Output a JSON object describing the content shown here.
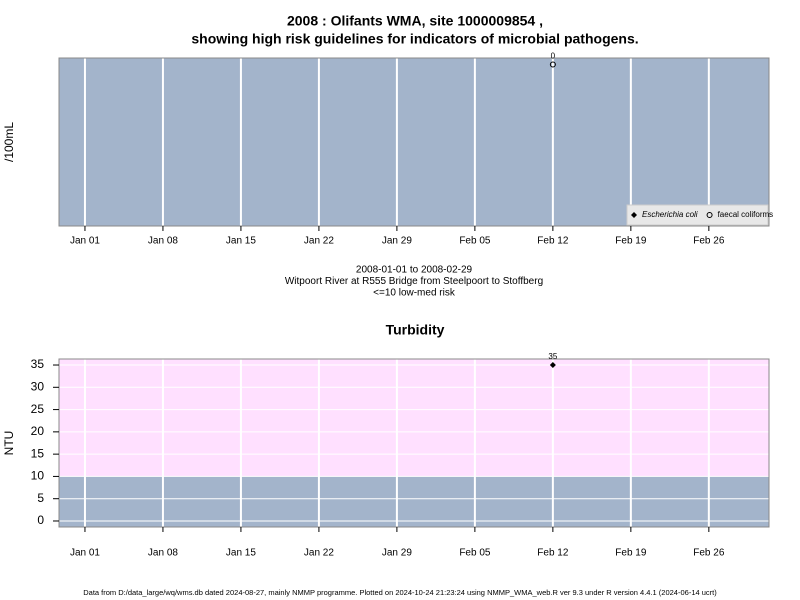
{
  "chart_data": [
    {
      "type": "scatter",
      "title": [
        "2008 : Olifants WMA, site 1000009854 ,",
        "showing high risk guidelines for indicators of microbial pathogens."
      ],
      "ylabel": "/100mL",
      "x": [
        43
      ],
      "series": [
        {
          "name": "Escherichia coli",
          "marker": "diamond",
          "color": "#000000",
          "values": [
            null
          ]
        },
        {
          "name": "faecal coliforms",
          "marker": "circle",
          "color": "#000000",
          "values": [
            0
          ]
        }
      ],
      "xlim": [
        -1.33,
        62.4
      ],
      "xticks": [
        {
          "value": 1,
          "label": "Jan 01"
        },
        {
          "value": 8,
          "label": "Jan 08"
        },
        {
          "value": 15,
          "label": "Jan 15"
        },
        {
          "value": 22,
          "label": "Jan 22"
        },
        {
          "value": 29,
          "label": "Jan 29"
        },
        {
          "value": 36,
          "label": "Feb 05"
        },
        {
          "value": 43,
          "label": "Feb 12"
        },
        {
          "value": 50,
          "label": "Feb 19"
        },
        {
          "value": 57,
          "label": "Feb 26"
        }
      ],
      "ylim": [
        -1,
        0.04
      ],
      "background": "#a3b4cb",
      "grid": true,
      "legend": "bottom-right",
      "caption": [
        "2008-01-01 to 2008-02-29",
        "Witpoort River at R555 Bridge from Steelpoort to Stoffberg",
        "<=10 low-med risk"
      ]
    },
    {
      "type": "scatter",
      "title": [
        "Turbidity"
      ],
      "ylabel": "NTU",
      "x": [
        43
      ],
      "series": [
        {
          "marker": "diamond",
          "color": "#000000",
          "values": [
            35
          ]
        }
      ],
      "xlim": [
        -1.33,
        62.4
      ],
      "xticks": [
        {
          "value": 1,
          "label": "Jan 01"
        },
        {
          "value": 8,
          "label": "Jan 08"
        },
        {
          "value": 15,
          "label": "Jan 15"
        },
        {
          "value": 22,
          "label": "Jan 22"
        },
        {
          "value": 29,
          "label": "Jan 29"
        },
        {
          "value": 36,
          "label": "Feb 05"
        },
        {
          "value": 43,
          "label": "Feb 12"
        },
        {
          "value": 50,
          "label": "Feb 19"
        },
        {
          "value": 57,
          "label": "Feb 26"
        }
      ],
      "ylim": [
        -1.35,
        36.35
      ],
      "yticks": [
        0,
        5,
        10,
        15,
        20,
        25,
        30,
        35
      ],
      "background": "#a3b4cb",
      "threshold": 10,
      "above_color": "#ffe0ff",
      "grid": true
    }
  ],
  "footer": "Data from D:/data_large/wq/wms.db dated 2024-08-27, mainly NMMP programme. Plotted on 2024-10-24 21:23:24 using NMMP_WMA_web.R ver 9.3 under R version 4.4.1 (2024-06-14 ucrt)"
}
